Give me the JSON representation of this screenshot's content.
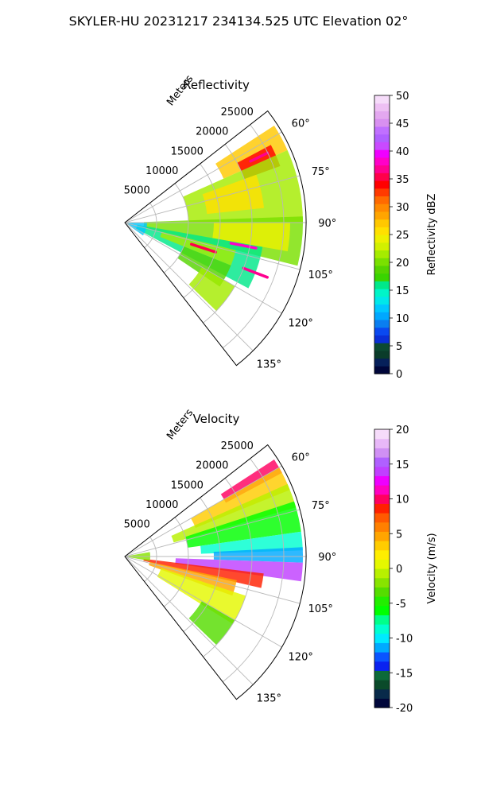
{
  "figure_title": "SKYLER-HU  20231217  234134.525 UTC Elevation 02°",
  "chart_data": [
    {
      "type": "radar-ppi-sector",
      "title": "Reflectivity",
      "range_label": "Meters",
      "range_ticks": [
        "5000",
        "10000",
        "15000",
        "20000",
        "25000"
      ],
      "range_tick_values": [
        5000,
        10000,
        15000,
        20000,
        25000
      ],
      "range_max": 28500,
      "azimuth_ticks": [
        "60°",
        "75°",
        "90°",
        "105°",
        "120°",
        "135°"
      ],
      "azimuth_tick_values": [
        60,
        75,
        90,
        105,
        120,
        135
      ],
      "azimuth_range": [
        52,
        142
      ],
      "colorbar": {
        "label": "Reflectivity dBZ",
        "ticks": [
          "0",
          "5",
          "10",
          "15",
          "20",
          "25",
          "30",
          "35",
          "40",
          "45",
          "50"
        ],
        "range": [
          0,
          50
        ]
      },
      "echo_regions": [
        {
          "az": [
            57,
            66
          ],
          "range": [
            17000,
            28000
          ],
          "value": 27
        },
        {
          "az": [
            62,
            70
          ],
          "range": [
            20000,
            26000
          ],
          "value": 34
        },
        {
          "az": [
            66,
            90
          ],
          "range": [
            10000,
            28000
          ],
          "value": 22
        },
        {
          "az": [
            70,
            84
          ],
          "range": [
            13000,
            22000
          ],
          "value": 26
        },
        {
          "az": [
            88,
            104
          ],
          "range": [
            3000,
            28000
          ],
          "value": 20
        },
        {
          "az": [
            90,
            100
          ],
          "range": [
            14000,
            26000
          ],
          "value": 24
        },
        {
          "az": [
            100,
            118
          ],
          "range": [
            2000,
            22000
          ],
          "value": 16
        },
        {
          "az": [
            104,
            112
          ],
          "range": [
            6000,
            18000
          ],
          "value": 21
        },
        {
          "az": [
            112,
            124
          ],
          "range": [
            10000,
            18000
          ],
          "value": 19
        },
        {
          "az": [
            120,
            134
          ],
          "range": [
            14000,
            20000
          ],
          "value": 22
        },
        {
          "az": [
            90,
            125
          ],
          "range": [
            300,
            3500
          ],
          "value": 12
        }
      ],
      "streaks": [
        {
          "az": 64,
          "range": [
            22000,
            25000
          ],
          "value": 37
        },
        {
          "az": 101,
          "range": [
            17000,
            21000
          ],
          "value": 38
        },
        {
          "az": 108,
          "range": [
            11000,
            15000
          ],
          "value": 36
        },
        {
          "az": 111,
          "range": [
            20000,
            24000
          ],
          "value": 37
        }
      ]
    },
    {
      "type": "radar-ppi-sector",
      "title": "Velocity",
      "range_label": "Meters",
      "range_ticks": [
        "5000",
        "10000",
        "15000",
        "20000",
        "25000"
      ],
      "range_tick_values": [
        5000,
        10000,
        15000,
        20000,
        25000
      ],
      "range_max": 28500,
      "azimuth_ticks": [
        "60°",
        "75°",
        "90°",
        "105°",
        "120°",
        "135°"
      ],
      "azimuth_tick_values": [
        60,
        75,
        90,
        105,
        120,
        135
      ],
      "azimuth_range": [
        52,
        142
      ],
      "colorbar": {
        "label": "Velocity (m/s)",
        "ticks": [
          "-20",
          "-15",
          "-10",
          "-5",
          "0",
          "5",
          "10",
          "15",
          "20"
        ],
        "range": [
          -20,
          20
        ]
      },
      "echo_regions": [
        {
          "az": [
            57,
            62
          ],
          "range": [
            18000,
            28000
          ],
          "value": 10
        },
        {
          "az": [
            60,
            68
          ],
          "range": [
            12000,
            28000
          ],
          "value": 3
        },
        {
          "az": [
            66,
            74
          ],
          "range": [
            8000,
            28000
          ],
          "value": -1
        },
        {
          "az": [
            72,
            82
          ],
          "range": [
            10000,
            28000
          ],
          "value": -6
        },
        {
          "az": [
            82,
            88
          ],
          "range": [
            12000,
            28000
          ],
          "value": -9
        },
        {
          "az": [
            87,
            92
          ],
          "range": [
            14000,
            28000
          ],
          "value": -12
        },
        {
          "az": [
            92,
            98
          ],
          "range": [
            8000,
            28000
          ],
          "value": 14
        },
        {
          "az": [
            97,
            103
          ],
          "range": [
            3000,
            22000
          ],
          "value": 9
        },
        {
          "az": [
            102,
            110
          ],
          "range": [
            4000,
            18000
          ],
          "value": 4
        },
        {
          "az": [
            108,
            122
          ],
          "range": [
            6000,
            20000
          ],
          "value": 1
        },
        {
          "az": [
            120,
            134
          ],
          "range": [
            14000,
            20000
          ],
          "value": -3
        },
        {
          "az": [
            80,
            100
          ],
          "range": [
            300,
            4000
          ],
          "value": -2
        }
      ],
      "streaks": []
    }
  ]
}
